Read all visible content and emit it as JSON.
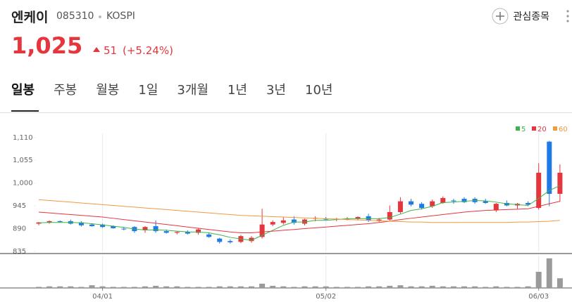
{
  "header": {
    "name": "엔케이",
    "code": "085310",
    "market": "KOSPI",
    "price": "1,025",
    "change": "51",
    "change_pct": "(+5.24%)",
    "watch_button": "관심종목"
  },
  "tabs": [
    "일봉",
    "주봉",
    "월봉",
    "1일",
    "3개월",
    "1년",
    "3년",
    "10년"
  ],
  "chart_data": {
    "type": "candlestick",
    "categories": [
      null,
      null,
      null,
      null,
      null,
      null,
      "04/01",
      null,
      null,
      null,
      null,
      null,
      null,
      null,
      null,
      null,
      null,
      null,
      null,
      null,
      null,
      null,
      null,
      null,
      null,
      null,
      null,
      "05/02",
      null,
      null,
      null,
      null,
      null,
      null,
      null,
      null,
      null,
      null,
      null,
      null,
      null,
      null,
      null,
      null,
      null,
      null,
      null,
      "06/03",
      null,
      null
    ],
    "open": [
      902,
      905,
      908,
      908,
      905,
      900,
      900,
      896,
      890,
      894,
      886,
      896,
      884,
      880,
      882,
      880,
      876,
      866,
      860,
      858,
      860,
      870,
      900,
      904,
      912,
      902,
      914,
      914,
      912,
      912,
      914,
      920,
      910,
      912,
      930,
      956,
      950,
      944,
      952,
      958,
      962,
      962,
      956,
      934,
      952,
      946,
      952,
      940,
      1100,
      974
    ],
    "high": [
      906,
      910,
      910,
      912,
      908,
      903,
      902,
      898,
      894,
      896,
      896,
      910,
      888,
      884,
      886,
      890,
      880,
      868,
      864,
      875,
      872,
      938,
      910,
      918,
      920,
      914,
      920,
      918,
      916,
      918,
      920,
      926,
      916,
      946,
      966,
      962,
      954,
      960,
      968,
      962,
      966,
      966,
      962,
      952,
      958,
      952,
      956,
      1048,
      1102,
      1045
    ],
    "low": [
      898,
      902,
      905,
      900,
      895,
      895,
      892,
      890,
      886,
      880,
      880,
      880,
      878,
      876,
      876,
      876,
      868,
      854,
      854,
      855,
      856,
      866,
      896,
      900,
      900,
      898,
      908,
      910,
      908,
      910,
      910,
      906,
      906,
      908,
      926,
      944,
      936,
      940,
      950,
      950,
      952,
      950,
      950,
      930,
      944,
      938,
      944,
      936,
      944,
      955
    ],
    "close": [
      905,
      908,
      906,
      902,
      898,
      896,
      894,
      891,
      889,
      884,
      894,
      884,
      880,
      882,
      878,
      888,
      870,
      858,
      857,
      872,
      868,
      900,
      906,
      910,
      904,
      912,
      916,
      912,
      914,
      914,
      918,
      910,
      912,
      930,
      956,
      948,
      940,
      956,
      964,
      956,
      954,
      954,
      952,
      950,
      946,
      950,
      948,
      1025,
      974,
      1025
    ],
    "up_color": "#e5353d",
    "down_color": "#1f7ae8",
    "series": [
      {
        "name": "5",
        "color": "#3cb44b",
        "values": [
          904,
          905,
          905,
          905,
          904,
          902,
          899,
          896,
          893,
          889,
          887,
          887,
          886,
          884,
          882,
          882,
          880,
          875,
          869,
          865,
          862,
          874,
          886,
          898,
          906,
          906,
          910,
          910,
          912,
          914,
          914,
          914,
          914,
          917,
          925,
          934,
          938,
          944,
          953,
          954,
          956,
          958,
          957,
          954,
          950,
          948,
          946,
          963,
          982,
          994
        ]
      },
      {
        "name": "20",
        "color": "#e5353d",
        "values": [
          930,
          928,
          926,
          924,
          922,
          920,
          918,
          915,
          912,
          909,
          906,
          903,
          900,
          897,
          894,
          891,
          888,
          885,
          882,
          880,
          880,
          882,
          884,
          886,
          888,
          890,
          892,
          894,
          896,
          898,
          900,
          902,
          905,
          908,
          912,
          915,
          918,
          921,
          924,
          927,
          930,
          932,
          934,
          935,
          936,
          937,
          938,
          944,
          950,
          956
        ]
      },
      {
        "name": "60",
        "color": "#f29a3c",
        "values": [
          960,
          958,
          956,
          954,
          952,
          950,
          948,
          946,
          944,
          942,
          940,
          938,
          936,
          934,
          932,
          930,
          928,
          926,
          924,
          922,
          921,
          920,
          919,
          918,
          917,
          916,
          915,
          914,
          913,
          912,
          911,
          910,
          909,
          908,
          907,
          906,
          906,
          905,
          905,
          905,
          905,
          905,
          905,
          905,
          905,
          906,
          906,
          907,
          908,
          910
        ]
      }
    ],
    "volume": [
      2,
      3,
      3,
      3,
      2,
      5,
      3,
      2,
      2,
      2,
      3,
      4,
      3,
      3,
      2,
      2,
      2,
      3,
      3,
      3,
      3,
      8,
      4,
      3,
      2,
      3,
      3,
      3,
      2,
      2,
      2,
      3,
      3,
      4,
      5,
      3,
      3,
      4,
      3,
      3,
      3,
      3,
      2,
      3,
      2,
      2,
      3,
      30,
      55,
      18
    ],
    "volume_color": "#9a9a9a",
    "volume_ylim": [
      0,
      60
    ],
    "ylim": [
      835,
      1130
    ],
    "yticks": [
      {
        "value": 1110,
        "label": "1,110"
      },
      {
        "value": 1055,
        "label": "1,055"
      },
      {
        "value": 1000,
        "label": "1,000"
      },
      945,
      890,
      835
    ],
    "grid": true
  }
}
